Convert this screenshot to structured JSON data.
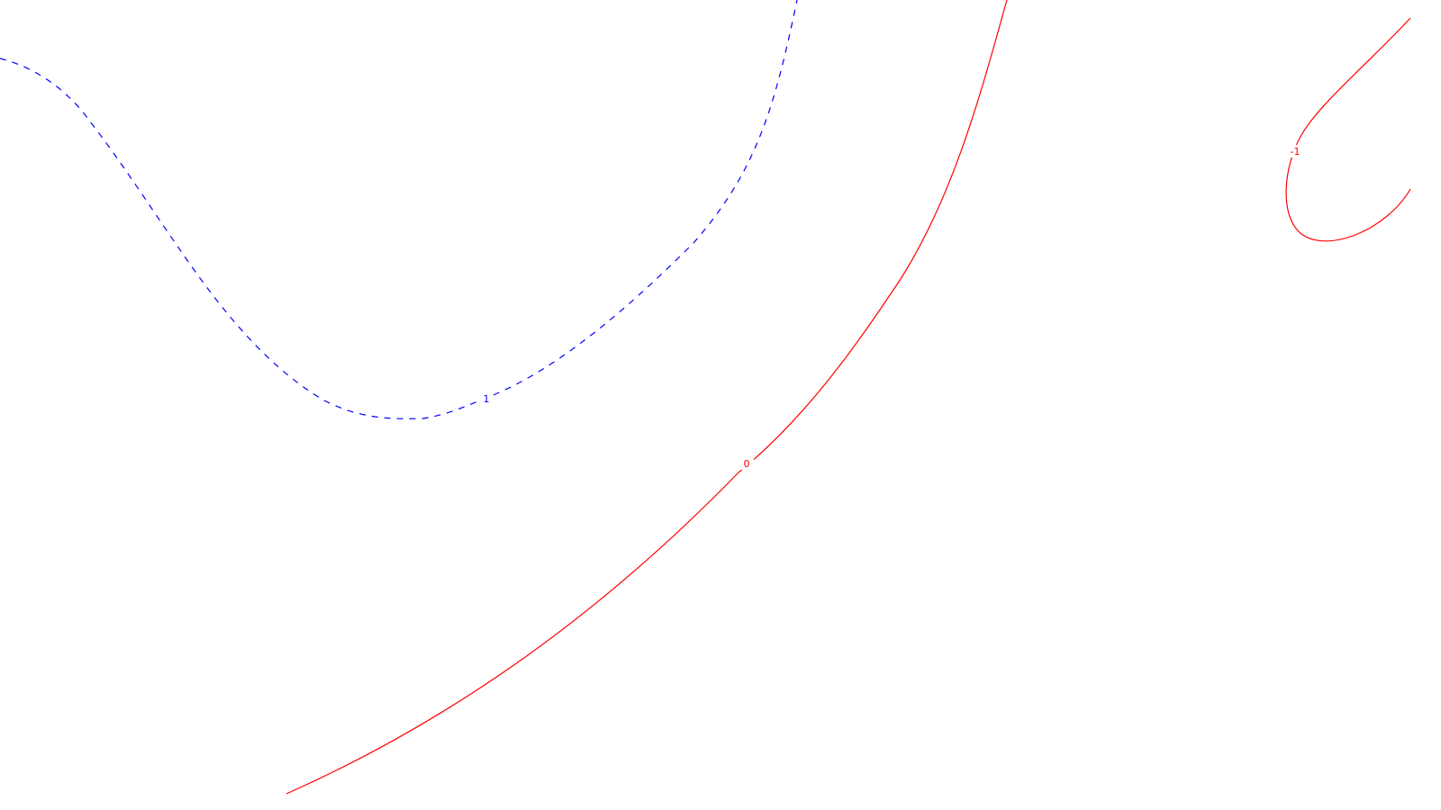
{
  "chart_data": {
    "type": "contour",
    "title": "",
    "xlabel": "",
    "ylabel": "",
    "grid": false,
    "contours": [
      {
        "level_label": "1",
        "color": "#0000ff",
        "line_style": "dashed"
      },
      {
        "level_label": "0",
        "color": "#ff0000",
        "line_style": "solid"
      },
      {
        "level_label": "-1",
        "color": "#ff0000",
        "line_style": "solid"
      }
    ]
  }
}
